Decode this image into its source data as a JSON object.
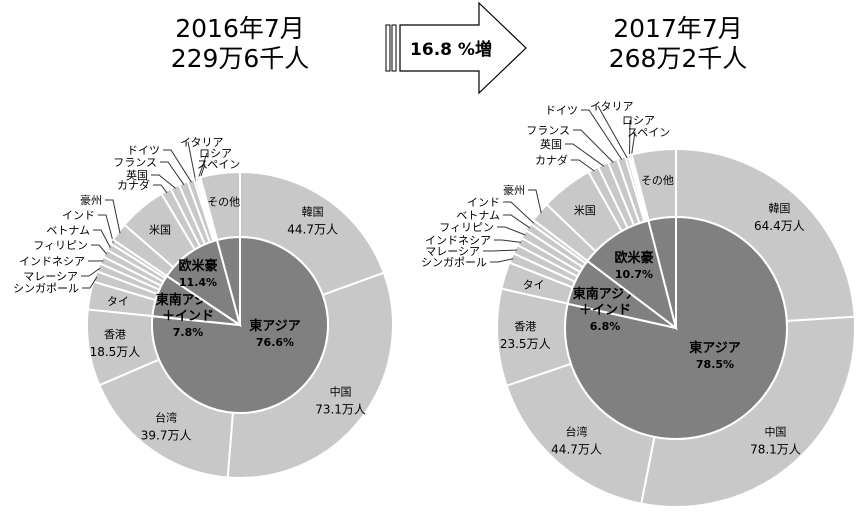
{
  "arrow": {
    "label": "16.8 %増"
  },
  "chart_data": [
    {
      "type": "pie",
      "subtype": "donut",
      "title": "2016年7月",
      "total_label": "229万6千人",
      "unit": "万人",
      "outer": [
        {
          "name": "韓国",
          "value": 44.7,
          "show_value": true
        },
        {
          "name": "中国",
          "value": 73.1,
          "show_value": true
        },
        {
          "name": "台湾",
          "value": 39.7,
          "show_value": true
        },
        {
          "name": "香港",
          "value": 18.5,
          "show_value": true
        },
        {
          "name": "タイ",
          "value": 6.8
        },
        {
          "name": "シンガポール",
          "value": 2.6
        },
        {
          "name": "マレーシア",
          "value": 2.0
        },
        {
          "name": "インドネシア",
          "value": 1.8
        },
        {
          "name": "フィリピン",
          "value": 1.9
        },
        {
          "name": "ベトナム",
          "value": 1.7
        },
        {
          "name": "インド",
          "value": 1.1
        },
        {
          "name": "豪州",
          "value": 4.5
        },
        {
          "name": "米国",
          "value": 11.6
        },
        {
          "name": "カナダ",
          "value": 2.5
        },
        {
          "name": "英国",
          "value": 2.2
        },
        {
          "name": "フランス",
          "value": 2.2
        },
        {
          "name": "ドイツ",
          "value": 1.6
        },
        {
          "name": "イタリア",
          "value": 0.6
        },
        {
          "name": "ロシア",
          "value": 0.5
        },
        {
          "name": "スペイン",
          "value": 0.5
        },
        {
          "name": "その他",
          "value": 9.6
        }
      ],
      "inner": [
        {
          "name": "東アジア",
          "pct": "76.6%",
          "value": 76.6
        },
        {
          "name": "東南アジア\n＋インド",
          "pct": "7.8%",
          "value": 7.8
        },
        {
          "name": "欧米豪",
          "pct": "11.4%",
          "value": 11.4
        },
        {
          "name": "",
          "pct": "",
          "value": 4.2
        }
      ]
    },
    {
      "type": "pie",
      "subtype": "donut",
      "title": "2017年7月",
      "total_label": "268万2千人",
      "unit": "万人",
      "outer": [
        {
          "name": "韓国",
          "value": 64.4,
          "show_value": true
        },
        {
          "name": "中国",
          "value": 78.1,
          "show_value": true
        },
        {
          "name": "台湾",
          "value": 44.7,
          "show_value": true
        },
        {
          "name": "香港",
          "value": 23.5,
          "show_value": true
        },
        {
          "name": "タイ",
          "value": 6.5
        },
        {
          "name": "シンガポール",
          "value": 2.4
        },
        {
          "name": "マレーシア",
          "value": 2.2
        },
        {
          "name": "インドネシア",
          "value": 2.0
        },
        {
          "name": "フィリピン",
          "value": 2.1
        },
        {
          "name": "ベトナム",
          "value": 1.9
        },
        {
          "name": "インド",
          "value": 1.1
        },
        {
          "name": "豪州",
          "value": 4.9
        },
        {
          "name": "米国",
          "value": 12.7
        },
        {
          "name": "カナダ",
          "value": 2.6
        },
        {
          "name": "英国",
          "value": 2.6
        },
        {
          "name": "フランス",
          "value": 2.3
        },
        {
          "name": "ドイツ",
          "value": 2.0
        },
        {
          "name": "イタリア",
          "value": 0.7
        },
        {
          "name": "ロシア",
          "value": 0.5
        },
        {
          "name": "スペイン",
          "value": 0.4
        },
        {
          "name": "その他",
          "value": 10.7
        }
      ],
      "inner": [
        {
          "name": "東アジア",
          "pct": "78.5%",
          "value": 78.5
        },
        {
          "name": "東南アジア\n＋インド",
          "pct": "6.8%",
          "value": 6.8
        },
        {
          "name": "欧米豪",
          "pct": "10.7%",
          "value": 10.7
        },
        {
          "name": "",
          "pct": "",
          "value": 4.0
        }
      ]
    }
  ]
}
